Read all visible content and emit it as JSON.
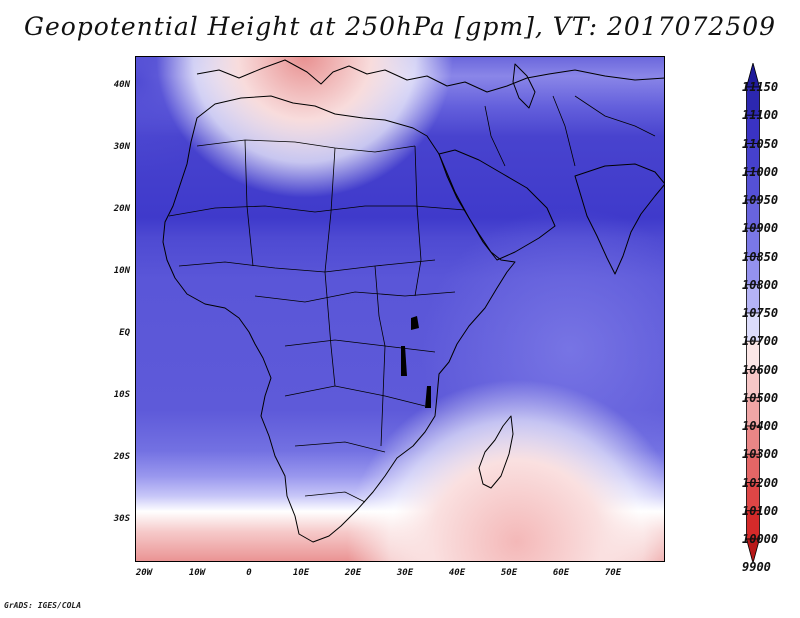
{
  "title": "Geopotential Height at 250hPa [gpm], VT: 2017072509",
  "credit": "GrADS: IGES/COLA",
  "lat_labels": [
    "40N",
    "30N",
    "20N",
    "10N",
    "EQ",
    "10S",
    "20S",
    "30S"
  ],
  "lon_labels": [
    "20W",
    "10W",
    "0",
    "10E",
    "20E",
    "30E",
    "40E",
    "50E",
    "60E",
    "70E"
  ],
  "colorbar": {
    "levels": [
      "11150",
      "11100",
      "11050",
      "11000",
      "10950",
      "10900",
      "10850",
      "10800",
      "10750",
      "10700",
      "10600",
      "10500",
      "10400",
      "10300",
      "10200",
      "10100",
      "10000",
      "9900"
    ],
    "colors": [
      "#1f1b9a",
      "#2c27b0",
      "#3a33c4",
      "#4641cd",
      "#5551d6",
      "#6864de",
      "#7a78e6",
      "#9492ee",
      "#b4b3f5",
      "#dcdcfb",
      "#fbe6e6",
      "#f6c6c6",
      "#f0a6a6",
      "#ea8686",
      "#e46666",
      "#de4646",
      "#d42a2a",
      "#b81818"
    ]
  },
  "chart_data": {
    "type": "heatmap",
    "title": "Geopotential Height at 250hPa [gpm], VT: 2017072509",
    "variable": "Geopotential Height at 250hPa",
    "units": "gpm",
    "valid_time": "2017072509",
    "lon_range": [
      "20W",
      "80E"
    ],
    "lat_range": [
      "37S",
      "45N"
    ],
    "colorbar_levels": [
      9900,
      10000,
      10100,
      10200,
      10300,
      10400,
      10500,
      10600,
      10700,
      10750,
      10800,
      10850,
      10900,
      10950,
      11000,
      11050,
      11100,
      11150
    ]
  }
}
